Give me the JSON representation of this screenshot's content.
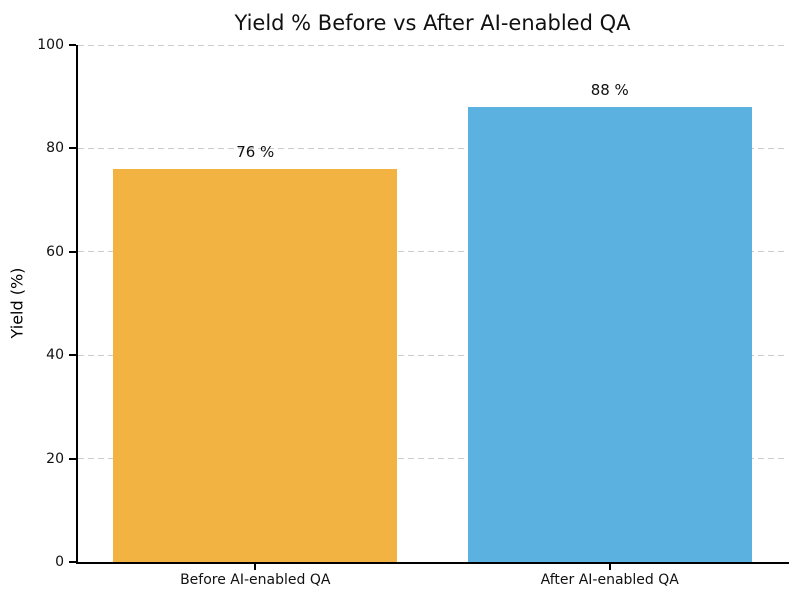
{
  "chart_data": {
    "type": "bar",
    "title": "Yield % Before vs After AI-enabled QA",
    "categories": [
      "Before AI-enabled QA",
      "After AI-enabled QA"
    ],
    "values": [
      76,
      88
    ],
    "value_labels": [
      "76 %",
      "88 %"
    ],
    "bar_colors": [
      "#F2B342",
      "#5BB2E1"
    ],
    "xlabel": "",
    "ylabel": "Yield (%)",
    "ylim": [
      0,
      100
    ],
    "yticks": [
      0,
      20,
      40,
      60,
      80,
      100
    ],
    "grid": "horizontal dashed",
    "legend": "none"
  },
  "colors": {
    "background": "#ffffff",
    "gridline": "#cccccc",
    "spine": "#000000",
    "text": "#111111"
  }
}
